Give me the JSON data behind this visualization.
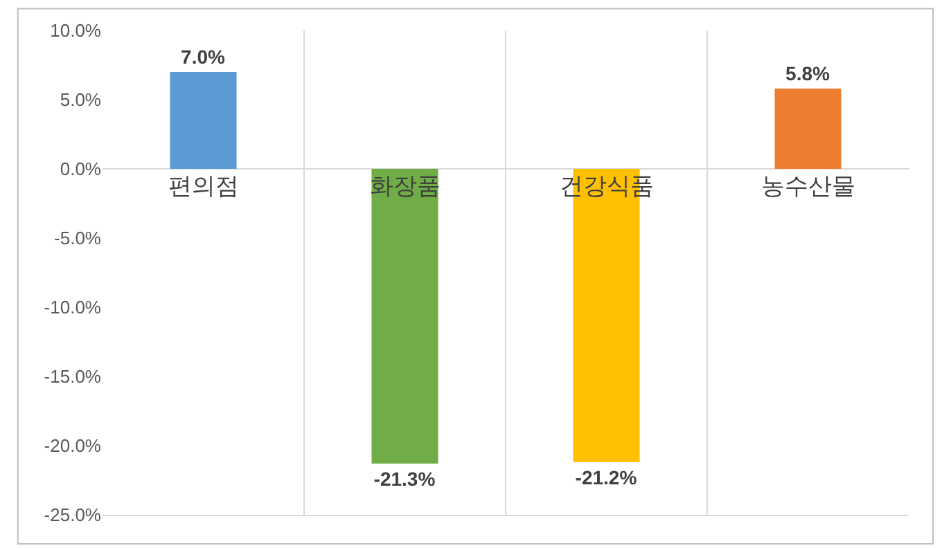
{
  "chart_data": {
    "type": "bar",
    "categories": [
      "편의점",
      "화장품",
      "건강식품",
      "농수산물"
    ],
    "values": [
      7.0,
      -21.3,
      -21.2,
      5.8
    ],
    "colors": [
      "#5b9bd5",
      "#70ad47",
      "#ffc000",
      "#ed7d31"
    ],
    "value_labels": [
      "7.0%",
      "-21.3%",
      "-21.2%",
      "5.8%"
    ],
    "ylim": [
      -25,
      10
    ],
    "yticks": [
      {
        "value": 10,
        "label": "10.0%"
      },
      {
        "value": 5,
        "label": "5.0%"
      },
      {
        "value": 0,
        "label": "0.0%"
      },
      {
        "value": -5,
        "label": "-5.0%"
      },
      {
        "value": -10,
        "label": "-10.0%"
      },
      {
        "value": -15,
        "label": "-15.0%"
      },
      {
        "value": -20,
        "label": "-20.0%"
      },
      {
        "value": -25,
        "label": "-25.0%"
      }
    ],
    "grid": "x"
  }
}
